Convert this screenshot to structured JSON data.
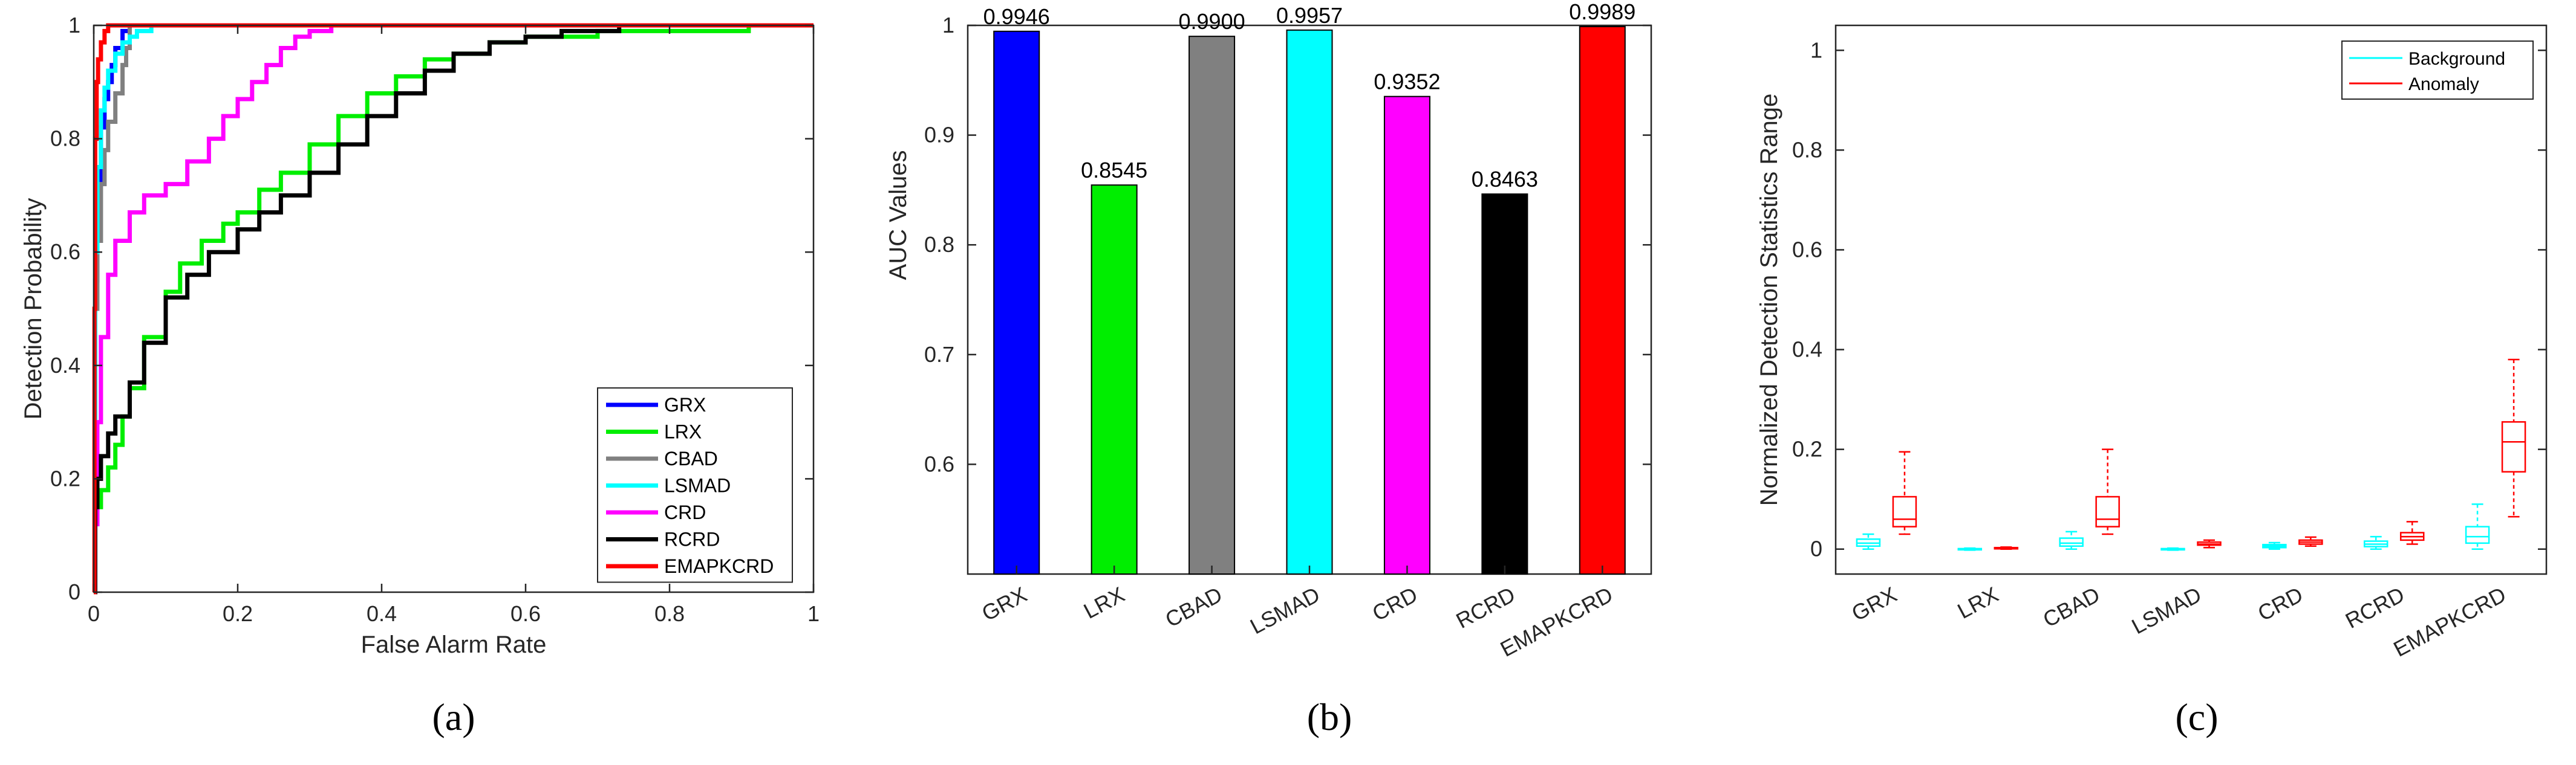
{
  "panel_labels": [
    "(a)",
    "(b)",
    "(c)"
  ],
  "chart_data": [
    {
      "type": "line",
      "xlabel": "False Alarm Rate",
      "ylabel": "Detection Probability",
      "xlim": [
        0,
        1
      ],
      "ylim": [
        0,
        1
      ],
      "xticks": [
        "0",
        "0.2",
        "0.4",
        "0.6",
        "0.8",
        "1"
      ],
      "yticks": [
        "0",
        "0.2",
        "0.4",
        "0.6",
        "0.8",
        "1"
      ],
      "legend_position": "bottom-right",
      "series": [
        {
          "name": "GRX",
          "color": "#0000ff",
          "x": [
            0,
            0.002,
            0.005,
            0.01,
            0.015,
            0.02,
            0.025,
            0.03,
            0.04,
            0.05,
            1
          ],
          "y": [
            0,
            0.55,
            0.72,
            0.82,
            0.87,
            0.9,
            0.93,
            0.96,
            0.99,
            1.0,
            1.0
          ]
        },
        {
          "name": "LRX",
          "color": "#00ee00",
          "x": [
            0,
            0.002,
            0.005,
            0.01,
            0.02,
            0.03,
            0.04,
            0.05,
            0.07,
            0.1,
            0.12,
            0.15,
            0.18,
            0.2,
            0.23,
            0.26,
            0.3,
            0.34,
            0.38,
            0.42,
            0.46,
            0.5,
            0.55,
            0.6,
            0.65,
            0.7,
            0.75,
            0.8,
            0.85,
            0.9,
            0.91,
            1
          ],
          "y": [
            0,
            0.12,
            0.15,
            0.18,
            0.22,
            0.26,
            0.31,
            0.36,
            0.45,
            0.53,
            0.58,
            0.62,
            0.65,
            0.67,
            0.71,
            0.74,
            0.79,
            0.84,
            0.88,
            0.91,
            0.94,
            0.95,
            0.97,
            0.98,
            0.98,
            0.99,
            0.99,
            0.99,
            0.99,
            0.99,
            1.0,
            1.0
          ]
        },
        {
          "name": "CBAD",
          "color": "#808080",
          "x": [
            0,
            0.002,
            0.005,
            0.01,
            0.015,
            0.02,
            0.03,
            0.04,
            0.045,
            0.05,
            1
          ],
          "y": [
            0,
            0.5,
            0.62,
            0.72,
            0.78,
            0.83,
            0.88,
            0.93,
            0.96,
            1.0,
            1.0
          ]
        },
        {
          "name": "LSMAD",
          "color": "#00ffff",
          "x": [
            0,
            0.002,
            0.005,
            0.01,
            0.015,
            0.02,
            0.03,
            0.04,
            0.05,
            0.06,
            0.07,
            0.08,
            1
          ],
          "y": [
            0,
            0.6,
            0.75,
            0.85,
            0.89,
            0.92,
            0.95,
            0.97,
            0.98,
            0.99,
            0.99,
            1.0,
            1.0
          ]
        },
        {
          "name": "CRD",
          "color": "#ff00ff",
          "x": [
            0,
            0.002,
            0.005,
            0.01,
            0.02,
            0.03,
            0.05,
            0.07,
            0.1,
            0.13,
            0.16,
            0.18,
            0.2,
            0.22,
            0.24,
            0.26,
            0.28,
            0.3,
            0.33,
            1
          ],
          "y": [
            0,
            0.12,
            0.3,
            0.45,
            0.56,
            0.62,
            0.67,
            0.7,
            0.72,
            0.76,
            0.8,
            0.84,
            0.87,
            0.9,
            0.93,
            0.96,
            0.98,
            0.99,
            1.0,
            1.0
          ]
        },
        {
          "name": "RCRD",
          "color": "#000000",
          "x": [
            0,
            0.002,
            0.005,
            0.01,
            0.02,
            0.03,
            0.05,
            0.07,
            0.1,
            0.13,
            0.16,
            0.2,
            0.23,
            0.26,
            0.3,
            0.34,
            0.38,
            0.42,
            0.46,
            0.5,
            0.55,
            0.6,
            0.65,
            0.7,
            0.73,
            1
          ],
          "y": [
            0,
            0.15,
            0.2,
            0.24,
            0.28,
            0.31,
            0.37,
            0.44,
            0.52,
            0.56,
            0.6,
            0.64,
            0.67,
            0.7,
            0.74,
            0.79,
            0.84,
            0.88,
            0.92,
            0.95,
            0.97,
            0.98,
            0.99,
            0.99,
            1.0,
            1.0
          ]
        },
        {
          "name": "EMAPKCRD",
          "color": "#ff0000",
          "x": [
            0,
            0.001,
            0.002,
            0.004,
            0.006,
            0.01,
            0.015,
            0.02,
            1
          ],
          "y": [
            0,
            0.5,
            0.8,
            0.9,
            0.94,
            0.97,
            0.99,
            1.0,
            1.0
          ]
        }
      ]
    },
    {
      "type": "bar",
      "ylabel": "AUC Values",
      "categories": [
        "GRX",
        "LRX",
        "CBAD",
        "LSMAD",
        "CRD",
        "RCRD",
        "EMAPKCRD"
      ],
      "values": [
        0.9946,
        0.8545,
        0.99,
        0.9957,
        0.9352,
        0.8463,
        0.9989
      ],
      "value_labels": [
        "0.9946",
        "0.8545",
        "0.9900",
        "0.9957",
        "0.9352",
        "0.8463",
        "0.9989"
      ],
      "colors": [
        "#0000ff",
        "#00ee00",
        "#808080",
        "#00ffff",
        "#ff00ff",
        "#000000",
        "#ff0000"
      ],
      "ylim": [
        0.5,
        1.0
      ],
      "yticks": [
        "0.6",
        "0.7",
        "0.8",
        "0.9",
        "1"
      ]
    },
    {
      "type": "box",
      "ylabel": "Normalized Detection Statistics Range",
      "categories": [
        "GRX",
        "LRX",
        "CBAD",
        "LSMAD",
        "CRD",
        "RCRD",
        "EMAPKCRD"
      ],
      "ylim": [
        -0.05,
        1.05
      ],
      "yticks": [
        "0",
        "0.2",
        "0.4",
        "0.6",
        "0.8",
        "1"
      ],
      "legend_position": "top-right",
      "legend": [
        {
          "name": "Background",
          "color": "#00ffff"
        },
        {
          "name": "Anomaly",
          "color": "#ff0000"
        }
      ],
      "background": [
        [
          0.0,
          0.006,
          0.012,
          0.02,
          0.03
        ],
        [
          -0.002,
          -0.001,
          0.0,
          0.001,
          0.002
        ],
        [
          0.0,
          0.006,
          0.012,
          0.022,
          0.035
        ],
        [
          -0.002,
          -0.001,
          0.0,
          0.001,
          0.002
        ],
        [
          0.0,
          0.003,
          0.006,
          0.009,
          0.013
        ],
        [
          0.0,
          0.005,
          0.01,
          0.016,
          0.025
        ],
        [
          0.0,
          0.012,
          0.025,
          0.045,
          0.09
        ]
      ],
      "anomaly": [
        [
          0.03,
          0.045,
          0.06,
          0.105,
          0.195
        ],
        [
          0.0,
          0.001,
          0.002,
          0.003,
          0.004
        ],
        [
          0.03,
          0.045,
          0.06,
          0.105,
          0.2
        ],
        [
          0.003,
          0.008,
          0.01,
          0.014,
          0.018
        ],
        [
          0.006,
          0.01,
          0.014,
          0.018,
          0.024
        ],
        [
          0.01,
          0.018,
          0.025,
          0.033,
          0.055
        ],
        [
          0.065,
          0.155,
          0.215,
          0.255,
          0.38
        ]
      ]
    }
  ]
}
